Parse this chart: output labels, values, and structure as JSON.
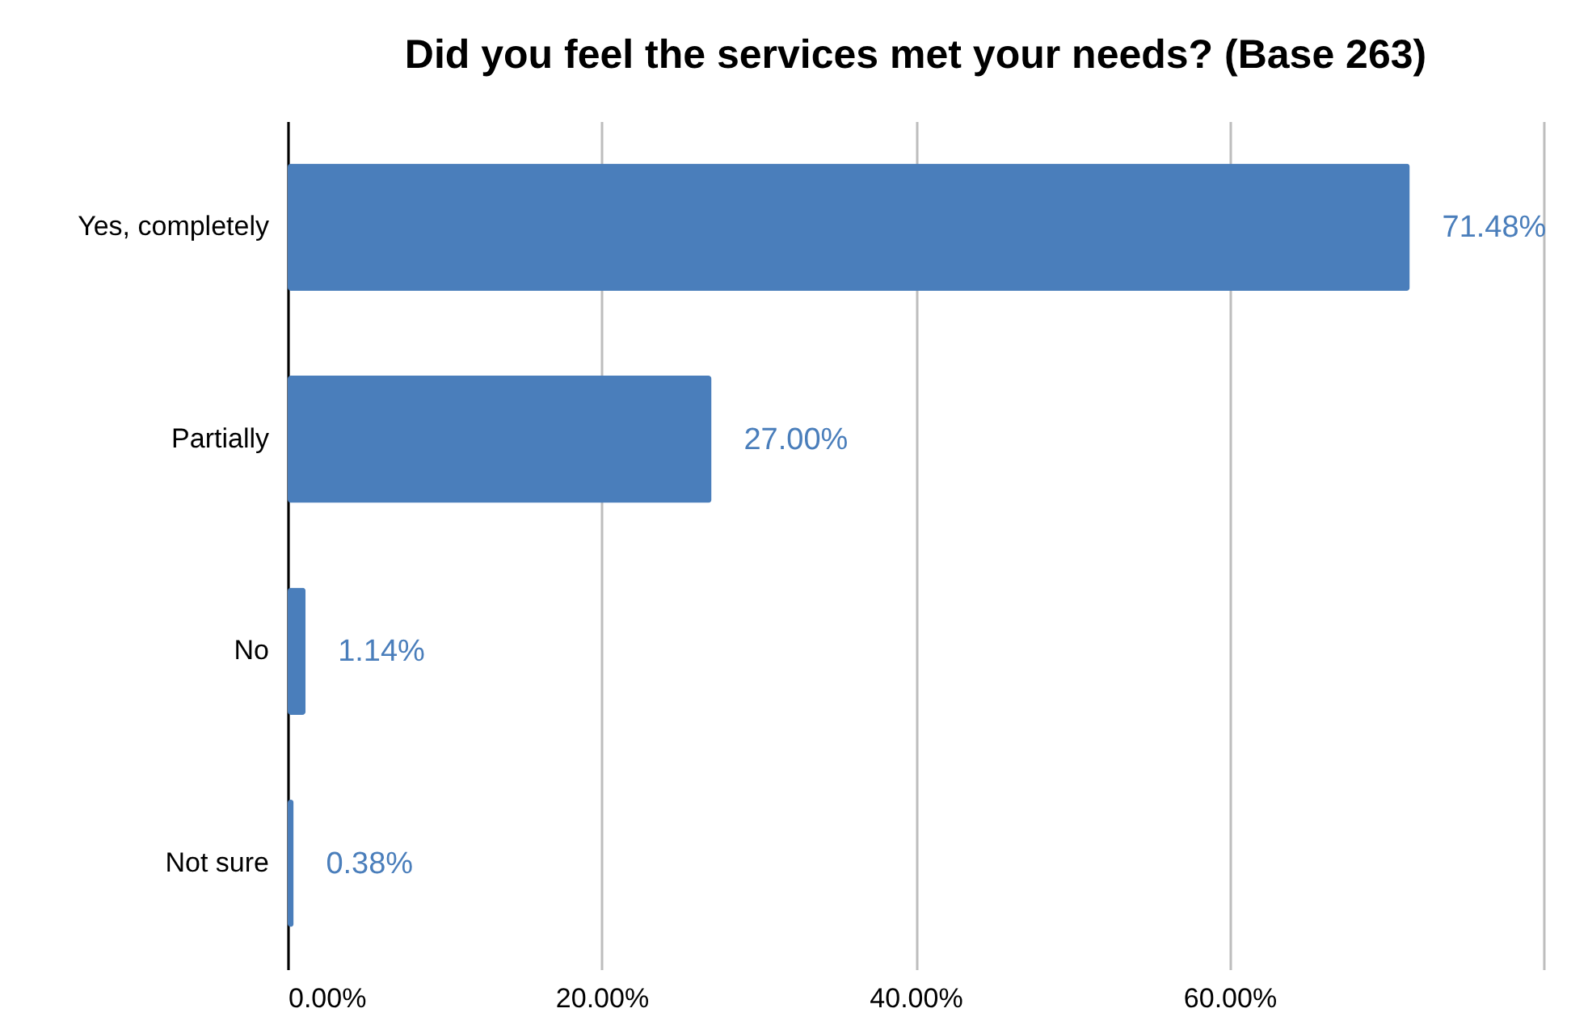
{
  "chart_data": {
    "type": "bar",
    "orientation": "horizontal",
    "title": "Did you feel the services met your needs?  (Base 263)",
    "categories": [
      "Yes, completely",
      "Partially",
      "No",
      "Not sure"
    ],
    "values": [
      71.48,
      27.0,
      1.14,
      0.38
    ],
    "value_labels": [
      "71.48%",
      "27.00%",
      "1.14%",
      "0.38%"
    ],
    "color": "#4a7ebb",
    "xlim": [
      0,
      80
    ],
    "xticks": [
      {
        "value": 0,
        "label": "0.00%"
      },
      {
        "value": 20,
        "label": "20.00%"
      },
      {
        "value": 40,
        "label": "40.00%"
      },
      {
        "value": 60,
        "label": "60.00%"
      },
      {
        "value": 80,
        "label": null
      }
    ],
    "grid": "x"
  }
}
